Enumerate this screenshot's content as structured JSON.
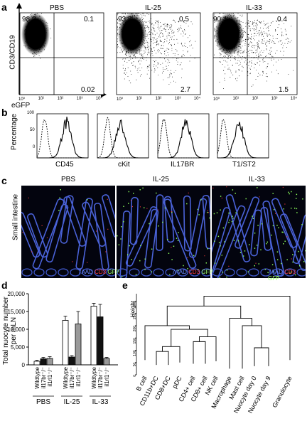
{
  "panel_a": {
    "letter": "a",
    "ylabel": "CD3/CD19",
    "xlabel": "eGFP",
    "plots": [
      {
        "title": "PBS",
        "q_ul": "98.2",
        "q_ur": "0.1",
        "q_lr": "0.02"
      },
      {
        "title": "IL-25",
        "q_ul": "93.5",
        "q_ur": "0.5",
        "q_lr": "2.7"
      },
      {
        "title": "IL-33",
        "q_ul": "90.4",
        "q_ur": "0.4",
        "q_lr": "1.5"
      }
    ],
    "ticks": [
      "10⁰",
      "10¹",
      "10²",
      "10³",
      "10⁴"
    ]
  },
  "panel_b": {
    "letter": "b",
    "ylabel": "Percentage",
    "ytick_100": "100",
    "ytick_50": "50",
    "ytick_0": "0",
    "markers": [
      "CD45",
      "cKit",
      "IL17BR",
      "T1/ST2"
    ]
  },
  "panel_c": {
    "letter": "c",
    "side_label": "Small intestine",
    "titles": [
      "PBS",
      "IL-25",
      "IL-33"
    ],
    "legend": {
      "a": "7AAD",
      "b": "CD3",
      "c": "GFP"
    },
    "colors": {
      "a": "#6c8cff",
      "b": "#ff3b3b",
      "c": "#9dff6a"
    }
  },
  "panel_d": {
    "letter": "d",
    "ylabel_1": "Total nuocyte number",
    "ylabel_2": "per mLN",
    "yticks": [
      "20,000",
      "15,000",
      "10,000",
      "5,000",
      "0"
    ],
    "groups": [
      "PBS",
      "IL-25",
      "IL-33"
    ],
    "genotypes": [
      "Wildtype",
      "il17br⁻/⁻",
      "il1rl1⁻/⁻"
    ],
    "chart_data": {
      "type": "bar",
      "categories": [
        "PBS",
        "IL-25",
        "IL-33"
      ],
      "ylim": [
        0,
        20000
      ],
      "series": [
        {
          "name": "Wildtype",
          "values": [
            1000,
            12500,
            16500
          ],
          "errors": [
            300,
            1200,
            800
          ]
        },
        {
          "name": "il17br⁻/⁻",
          "values": [
            1700,
            2200,
            13500
          ],
          "errors": [
            400,
            400,
            3500
          ]
        },
        {
          "name": "il1rl1⁻/⁻",
          "values": [
            1800,
            11500,
            1800
          ],
          "errors": [
            500,
            3500,
            300
          ]
        }
      ]
    }
  },
  "panel_e": {
    "letter": "e",
    "ylabel": "Height",
    "yticks": [
      "300",
      "250",
      "200",
      "150",
      "100",
      "50",
      "0"
    ],
    "leaves": [
      "B cell",
      "CD11b+DC",
      "CD8+DC",
      "pDC",
      "CD4+ cell",
      "CD8+ cell",
      "NK cell",
      "Macrophage",
      "Mast cell",
      "Nuocyte day 0",
      "Nuocyte day 9",
      "Granulocyte"
    ]
  }
}
